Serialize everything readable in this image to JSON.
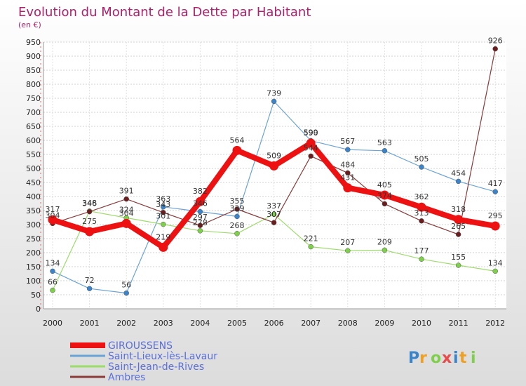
{
  "chart_data": {
    "type": "line",
    "title": "Evolution du Montant de la Dette par Habitant",
    "subtitle": "(en €)",
    "x": [
      "2000",
      "2001",
      "2002",
      "2003",
      "2004",
      "2005",
      "2006",
      "2007",
      "2008",
      "2009",
      "2010",
      "2011",
      "2012"
    ],
    "y_ticks": [
      0,
      50,
      100,
      150,
      200,
      250,
      300,
      350,
      400,
      450,
      500,
      550,
      600,
      650,
      700,
      750,
      800,
      850,
      900,
      950
    ],
    "ylim": [
      0,
      950
    ],
    "grid": true,
    "legend_position": "bottom-left",
    "series": [
      {
        "name": "Saint-Lieux-lès-Lavaur",
        "color": "#6aa3d5",
        "marker": "#3b84c9",
        "width": 1.2,
        "values": [
          134,
          72,
          56,
          363,
          346,
          329,
          739,
          599,
          567,
          563,
          505,
          454,
          417
        ]
      },
      {
        "name": "Saint-Jean-de-Rives",
        "color": "#9ddc6a",
        "marker": "#7ed04b",
        "width": 1.2,
        "values": [
          66,
          348,
          324,
          301,
          278,
          268,
          337,
          221,
          207,
          209,
          177,
          155,
          134
        ]
      },
      {
        "name": "Ambres",
        "color": "#8b3a3a",
        "marker": "#6b1d1d",
        "width": 1.2,
        "values": [
          304,
          346,
          391,
          343,
          297,
          355,
          307,
          544,
          484,
          374,
          313,
          265,
          926
        ]
      },
      {
        "name": "GIROUSSENS",
        "color": "#ee1111",
        "marker": "#ee1111",
        "width": 8,
        "values": [
          317,
          275,
          304,
          219,
          382,
          564,
          509,
          590,
          431,
          405,
          362,
          318,
          295
        ]
      }
    ],
    "legend_order": [
      "GIROUSSENS",
      "Saint-Lieux-lès-Lavaur",
      "Saint-Jean-de-Rives",
      "Ambres"
    ],
    "watermark": "Proxiti"
  }
}
